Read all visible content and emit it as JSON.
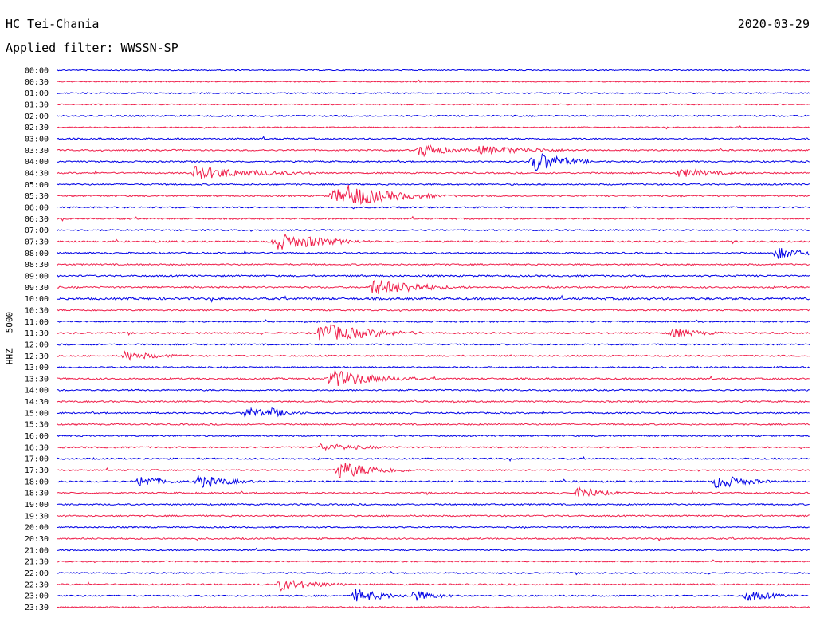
{
  "header": {
    "station": "HC Tei-Chania",
    "date": "2020-03-29",
    "filter": "Applied filter: WWSSN-SP"
  },
  "channel_label": "HHZ - 5000",
  "colors": {
    "even_trace": "#0000e6",
    "odd_trace": "#ef1f4b"
  },
  "chart_data": {
    "type": "seismogram-helicorder",
    "title": "HC Tei-Chania",
    "date": "2020-03-29",
    "filter": "WWSSN-SP",
    "ylabel": "HHZ - 5000",
    "row_minutes": 30,
    "row_labels": [
      "00:00",
      "00:30",
      "01:00",
      "01:30",
      "02:00",
      "02:30",
      "03:00",
      "03:30",
      "04:00",
      "04:30",
      "05:00",
      "05:30",
      "06:00",
      "06:30",
      "07:00",
      "07:30",
      "08:00",
      "08:30",
      "09:00",
      "09:30",
      "10:00",
      "10:30",
      "11:00",
      "11:30",
      "12:00",
      "12:30",
      "13:00",
      "13:30",
      "14:00",
      "14:30",
      "15:00",
      "15:30",
      "16:00",
      "16:30",
      "17:00",
      "17:30",
      "18:00",
      "18:30",
      "19:00",
      "19:30",
      "20:00",
      "20:30",
      "21:00",
      "21:30",
      "22:00",
      "22:30",
      "23:00",
      "23:30"
    ],
    "color_cycle": [
      "blue",
      "red"
    ],
    "noise_levels": [
      0.7,
      0.7,
      0.8,
      0.7,
      0.9,
      0.7,
      0.9,
      0.9,
      0.9,
      0.9,
      0.9,
      0.9,
      0.9,
      0.9,
      0.9,
      1.0,
      0.9,
      0.9,
      1.0,
      1.0,
      1.3,
      1.0,
      0.9,
      1.0,
      0.9,
      0.9,
      0.9,
      1.0,
      0.9,
      0.9,
      0.9,
      0.9,
      0.9,
      0.9,
      0.9,
      0.9,
      1.0,
      0.9,
      0.9,
      0.9,
      0.8,
      0.9,
      0.8,
      0.8,
      0.8,
      0.9,
      0.9,
      0.8
    ],
    "events": [
      {
        "row": 7,
        "minute": 14.5,
        "amplitude": 10,
        "duration": 1.0
      },
      {
        "row": 7,
        "minute": 16.8,
        "amplitude": 6,
        "duration": 2.5
      },
      {
        "row": 8,
        "minute": 19.0,
        "amplitude": 14,
        "duration": 1.2
      },
      {
        "row": 9,
        "minute": 5.5,
        "amplitude": 9,
        "duration": 2.5
      },
      {
        "row": 9,
        "minute": 24.8,
        "amplitude": 6,
        "duration": 1.5
      },
      {
        "row": 11,
        "minute": 11.6,
        "amplitude": 14,
        "duration": 1.8
      },
      {
        "row": 11,
        "minute": 11.0,
        "amplitude": 9,
        "duration": 2.5
      },
      {
        "row": 15,
        "minute": 8.7,
        "amplitude": 12,
        "duration": 1.5
      },
      {
        "row": 15,
        "minute": 9.8,
        "amplitude": 8,
        "duration": 1.5
      },
      {
        "row": 16,
        "minute": 28.7,
        "amplitude": 8,
        "duration": 1.0
      },
      {
        "row": 19,
        "minute": 12.6,
        "amplitude": 11,
        "duration": 1.8
      },
      {
        "row": 19,
        "minute": 13.8,
        "amplitude": 7,
        "duration": 1.5
      },
      {
        "row": 23,
        "minute": 10.5,
        "amplitude": 13,
        "duration": 2.0
      },
      {
        "row": 23,
        "minute": 24.5,
        "amplitude": 7,
        "duration": 1.2
      },
      {
        "row": 25,
        "minute": 2.7,
        "amplitude": 6,
        "duration": 1.5
      },
      {
        "row": 27,
        "minute": 10.9,
        "amplitude": 12,
        "duration": 1.8
      },
      {
        "row": 30,
        "minute": 7.5,
        "amplitude": 8,
        "duration": 1.0
      },
      {
        "row": 30,
        "minute": 8.5,
        "amplitude": 7,
        "duration": 0.8
      },
      {
        "row": 33,
        "minute": 10.5,
        "amplitude": 5,
        "duration": 2.0
      },
      {
        "row": 35,
        "minute": 11.2,
        "amplitude": 12,
        "duration": 1.5
      },
      {
        "row": 36,
        "minute": 3.3,
        "amplitude": 8,
        "duration": 1.0
      },
      {
        "row": 36,
        "minute": 5.6,
        "amplitude": 9,
        "duration": 1.2
      },
      {
        "row": 36,
        "minute": 26.3,
        "amplitude": 10,
        "duration": 1.2
      },
      {
        "row": 37,
        "minute": 20.8,
        "amplitude": 8,
        "duration": 1.0
      },
      {
        "row": 45,
        "minute": 8.9,
        "amplitude": 8,
        "duration": 1.5
      },
      {
        "row": 46,
        "minute": 11.9,
        "amplitude": 9,
        "duration": 1.2
      },
      {
        "row": 46,
        "minute": 14.2,
        "amplitude": 7,
        "duration": 1.0
      },
      {
        "row": 46,
        "minute": 27.5,
        "amplitude": 8,
        "duration": 1.0
      }
    ]
  }
}
